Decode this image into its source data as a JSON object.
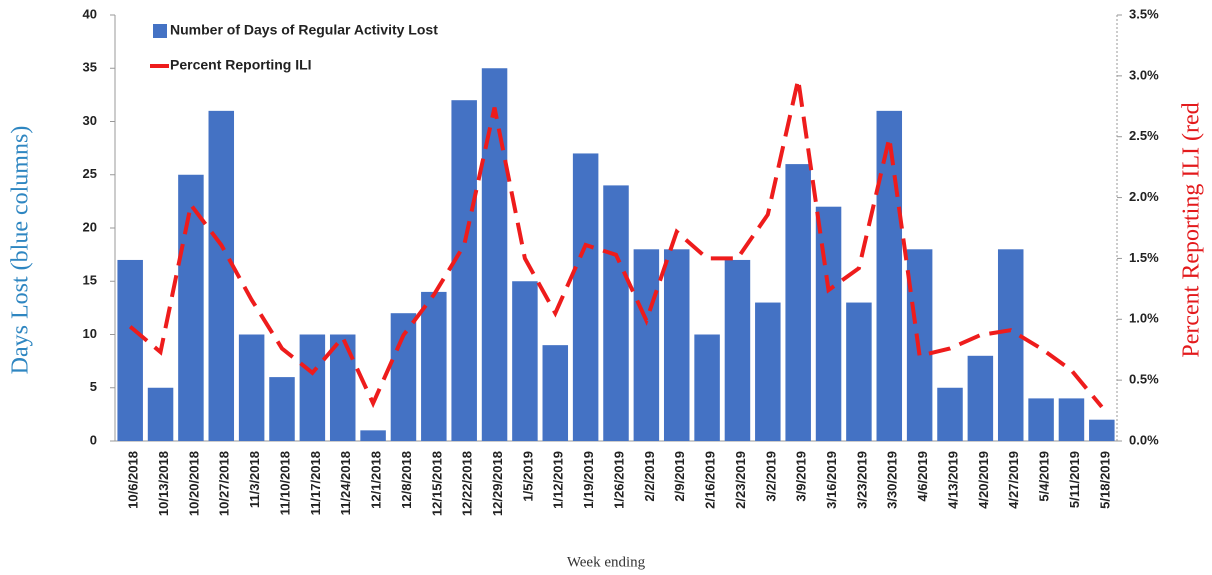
{
  "chart_data": {
    "type": "bar-line",
    "categories": [
      "10/6/2018",
      "10/13/2018",
      "10/20/2018",
      "10/27/2018",
      "11/3/2018",
      "11/10/2018",
      "11/17/2018",
      "11/24/2018",
      "12/1/2018",
      "12/8/2018",
      "12/15/2018",
      "12/22/2018",
      "12/29/2018",
      "1/5/2019",
      "1/12/2019",
      "1/19/2019",
      "1/26/2019",
      "2/2/2019",
      "2/9/2019",
      "2/16/2019",
      "2/23/2019",
      "3/2/2019",
      "3/9/2019",
      "3/16/2019",
      "3/23/2019",
      "3/30/2019",
      "4/6/2019",
      "4/13/2019",
      "4/20/2019",
      "4/27/2019",
      "5/4/2019",
      "5/11/2019",
      "5/18/2019"
    ],
    "series": [
      {
        "name": "Number of Days of Regular Activity Lost",
        "type": "bar",
        "color": "#4472c4",
        "values": [
          17,
          5,
          25,
          31,
          10,
          6,
          10,
          10,
          1,
          12,
          14,
          32,
          35,
          15,
          9,
          27,
          24,
          18,
          18,
          10,
          17,
          13,
          26,
          22,
          13,
          31,
          18,
          5,
          8,
          18,
          4,
          4,
          2
        ]
      },
      {
        "name": "Percent Reporting ILI",
        "type": "line",
        "axis": "y2",
        "color": "#ee1c1c",
        "values": [
          0.94,
          0.73,
          1.94,
          1.61,
          1.16,
          0.76,
          0.56,
          0.85,
          0.31,
          0.87,
          1.2,
          1.61,
          2.74,
          1.5,
          1.05,
          1.61,
          1.53,
          0.99,
          1.72,
          1.5,
          1.5,
          1.86,
          2.97,
          1.24,
          1.42,
          2.49,
          0.7,
          0.76,
          0.87,
          0.91,
          0.76,
          0.58,
          0.28
        ]
      }
    ],
    "ylabel": "Days Lost (blue columns)",
    "y2label": "Percent Reporting ILI (red",
    "xlabel": "Week ending",
    "ylim": [
      0,
      40
    ],
    "yticks": [
      0,
      5,
      10,
      15,
      20,
      25,
      30,
      35,
      40
    ],
    "y2lim": [
      0,
      3.5
    ],
    "y2ticks": [
      {
        "value": 0,
        "label": "0.0%"
      },
      {
        "value": 0.5,
        "label": "0.5%"
      },
      {
        "value": 1,
        "label": "1.0%"
      },
      {
        "value": 1.5,
        "label": "1.5%"
      },
      {
        "value": 2,
        "label": "2.0%"
      },
      {
        "value": 2.5,
        "label": "2.5%"
      },
      {
        "value": 3,
        "label": "3.0%"
      },
      {
        "value": 3.5,
        "label": "3.5%"
      }
    ],
    "legend": "upper left"
  }
}
